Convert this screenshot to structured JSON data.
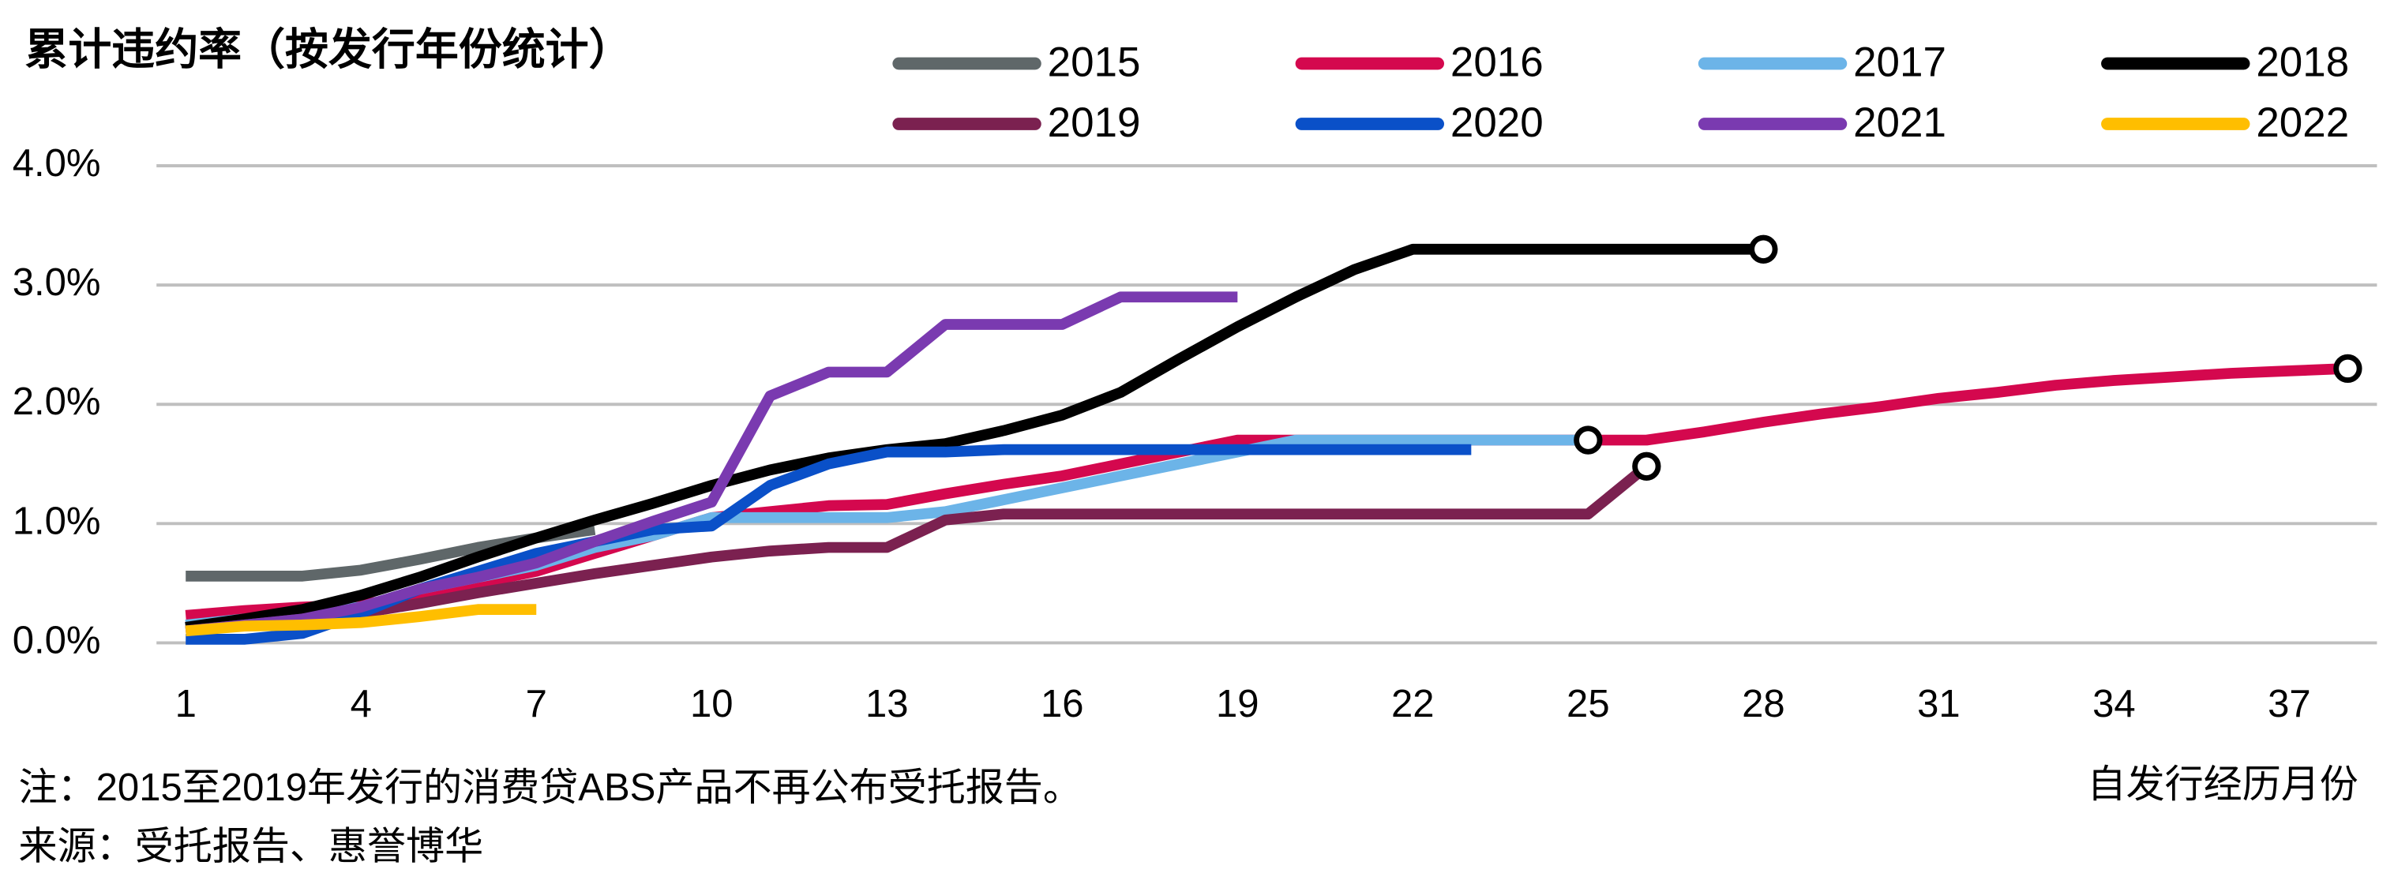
{
  "chart_data": {
    "type": "line",
    "title": "累计违约率（按发行年份统计）",
    "x_label": "自发行经历月份",
    "note": "注：2015至2019年发行的消费贷ABS产品不再公布受托报告。",
    "source": "来源：受托报告、惠誉博华",
    "x": [
      1,
      2,
      3,
      4,
      5,
      6,
      7,
      8,
      9,
      10,
      11,
      12,
      13,
      14,
      15,
      16,
      17,
      18,
      19,
      20,
      21,
      22,
      23,
      24,
      25,
      26,
      27,
      28,
      29,
      30,
      31,
      32,
      33,
      34,
      35,
      36,
      37,
      38
    ],
    "xlim": [
      0.5,
      38.5
    ],
    "xticks": [
      1,
      4,
      7,
      10,
      13,
      16,
      19,
      22,
      25,
      28,
      31,
      34,
      37
    ],
    "ylim": [
      0,
      4
    ],
    "yticks": [
      {
        "value": 0,
        "label": "0.0%"
      },
      {
        "value": 1,
        "label": "1.0%"
      },
      {
        "value": 2,
        "label": "2.0%"
      },
      {
        "value": 3,
        "label": "3.0%"
      },
      {
        "value": 4,
        "label": "4.0%"
      }
    ],
    "grid": true,
    "legend": "top",
    "series": [
      {
        "name": "2015",
        "color": "#5f6769",
        "end_marker": false,
        "values": [
          0.56,
          0.56,
          0.56,
          0.61,
          0.7,
          0.8,
          0.88,
          0.95,
          null,
          null,
          null,
          null,
          null,
          null,
          null,
          null,
          null,
          null,
          null,
          null,
          null,
          null,
          null,
          null,
          null,
          null,
          null,
          null,
          null,
          null,
          null,
          null,
          null,
          null,
          null,
          null,
          null,
          null
        ]
      },
      {
        "name": "2016",
        "color": "#d4084e",
        "end_marker": true,
        "values": [
          0.23,
          0.27,
          0.3,
          0.32,
          0.4,
          0.5,
          0.6,
          0.75,
          0.9,
          1.05,
          1.1,
          1.15,
          1.16,
          1.25,
          1.33,
          1.4,
          1.5,
          1.6,
          1.7,
          1.7,
          1.7,
          1.7,
          1.7,
          1.7,
          1.7,
          1.7,
          1.77,
          1.85,
          1.92,
          1.98,
          2.05,
          2.1,
          2.16,
          2.2,
          2.23,
          2.26,
          2.28,
          2.3
        ]
      },
      {
        "name": "2017",
        "color": "#6cb4e8",
        "end_marker": true,
        "values": [
          0.15,
          0.2,
          0.25,
          0.3,
          0.45,
          0.55,
          0.65,
          0.8,
          0.9,
          1.05,
          1.05,
          1.05,
          1.05,
          1.1,
          1.2,
          1.3,
          1.4,
          1.5,
          1.6,
          1.7,
          1.7,
          1.7,
          1.7,
          1.7,
          1.7,
          null,
          null,
          null,
          null,
          null,
          null,
          null,
          null,
          null,
          null,
          null,
          null,
          null
        ]
      },
      {
        "name": "2018",
        "color": "#000000",
        "end_marker": true,
        "values": [
          0.13,
          0.2,
          0.28,
          0.4,
          0.55,
          0.72,
          0.88,
          1.03,
          1.17,
          1.32,
          1.45,
          1.55,
          1.62,
          1.67,
          1.78,
          1.91,
          2.1,
          2.38,
          2.65,
          2.9,
          3.13,
          3.3,
          3.3,
          3.3,
          3.3,
          3.3,
          3.3,
          3.3,
          null,
          null,
          null,
          null,
          null,
          null,
          null,
          null,
          null,
          null
        ]
      },
      {
        "name": "2019",
        "color": "#7b2150",
        "end_marker": true,
        "values": [
          0.1,
          0.15,
          0.2,
          0.25,
          0.33,
          0.42,
          0.5,
          0.58,
          0.65,
          0.72,
          0.77,
          0.8,
          0.8,
          1.03,
          1.08,
          1.08,
          1.08,
          1.08,
          1.08,
          1.08,
          1.08,
          1.08,
          1.08,
          1.08,
          1.08,
          1.48,
          null,
          null,
          null,
          null,
          null,
          null,
          null,
          null,
          null,
          null,
          null,
          null
        ]
      },
      {
        "name": "2020",
        "color": "#0a50c8",
        "end_marker": false,
        "values": [
          0.03,
          0.03,
          0.08,
          0.25,
          0.45,
          0.6,
          0.75,
          0.85,
          0.95,
          0.98,
          1.32,
          1.5,
          1.6,
          1.6,
          1.62,
          1.62,
          1.62,
          1.62,
          1.62,
          1.62,
          1.62,
          1.62,
          1.62,
          null,
          null,
          null,
          null,
          null,
          null,
          null,
          null,
          null,
          null,
          null,
          null,
          null,
          null,
          null
        ]
      },
      {
        "name": "2021",
        "color": "#7a3ab0",
        "end_marker": false,
        "values": [
          0.1,
          0.15,
          0.2,
          0.3,
          0.45,
          0.55,
          0.67,
          0.85,
          1.02,
          1.18,
          2.07,
          2.27,
          2.27,
          2.67,
          2.67,
          2.67,
          2.9,
          2.9,
          2.9,
          null,
          null,
          null,
          null,
          null,
          null,
          null,
          null,
          null,
          null,
          null,
          null,
          null,
          null,
          null,
          null,
          null,
          null,
          null
        ]
      },
      {
        "name": "2022",
        "color": "#ffbe00",
        "end_marker": false,
        "values": [
          0.1,
          0.14,
          0.15,
          0.17,
          0.22,
          0.28,
          0.28,
          null,
          null,
          null,
          null,
          null,
          null,
          null,
          null,
          null,
          null,
          null,
          null,
          null,
          null,
          null,
          null,
          null,
          null,
          null,
          null,
          null,
          null,
          null,
          null,
          null,
          null,
          null,
          null,
          null,
          null,
          null
        ]
      }
    ]
  }
}
